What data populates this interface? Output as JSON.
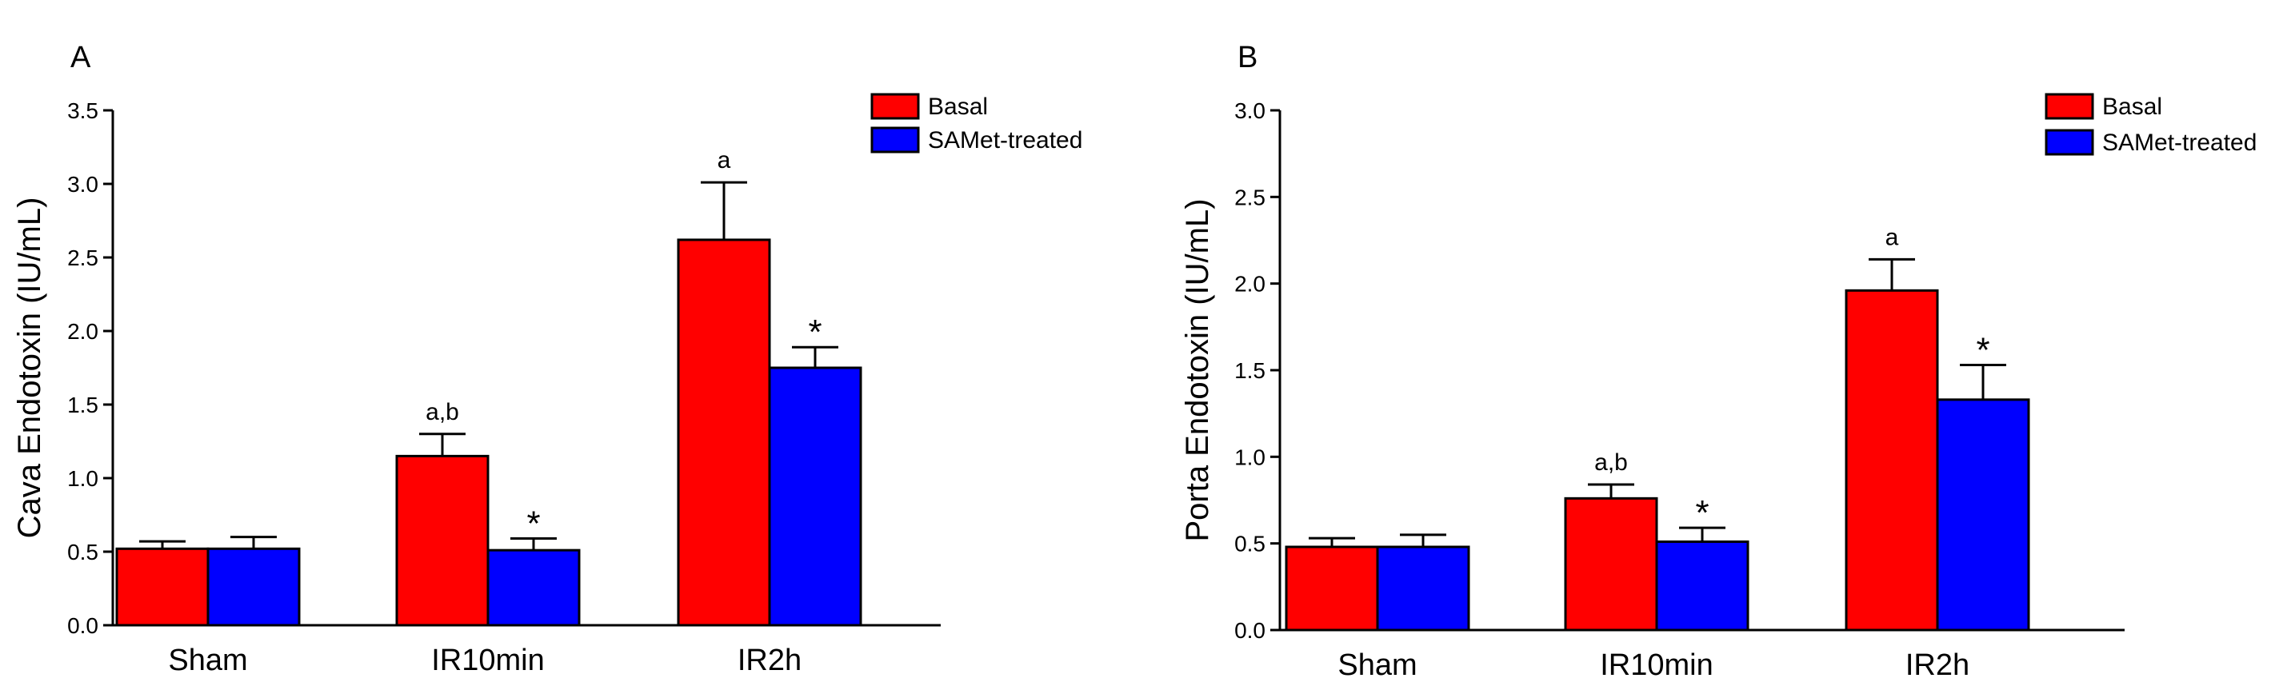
{
  "chart_data": [
    {
      "panel_label": "A",
      "type": "bar",
      "categories": [
        "Sham",
        "IR10min",
        "IR2h"
      ],
      "ylabel": "Cava Endotoxin (IU/mL)",
      "xlabel": "",
      "ylim": [
        0,
        3.5
      ],
      "yticks": [
        0.0,
        0.5,
        1.0,
        1.5,
        2.0,
        2.5,
        3.0,
        3.5
      ],
      "ytick_labels": [
        "0.0",
        "0.5",
        "1.0",
        "1.5",
        "2.0",
        "2.5",
        "3.0",
        "3.5"
      ],
      "legend_position": "top-right",
      "grid": false,
      "series": [
        {
          "name": "Basal",
          "color": "#ff0000",
          "values": [
            0.52,
            1.15,
            2.62
          ],
          "errors": [
            0.05,
            0.15,
            0.39
          ],
          "annotations": [
            "",
            "a,b",
            "a"
          ]
        },
        {
          "name": "SAMet-treated",
          "color": "#0000ff",
          "values": [
            0.52,
            0.51,
            1.75
          ],
          "errors": [
            0.08,
            0.08,
            0.14
          ],
          "annotations": [
            "",
            "*",
            "*"
          ]
        }
      ]
    },
    {
      "panel_label": "B",
      "type": "bar",
      "categories": [
        "Sham",
        "IR10min",
        "IR2h"
      ],
      "ylabel": "Porta Endotoxin (IU/mL)",
      "xlabel": "",
      "ylim": [
        0,
        3.0
      ],
      "yticks": [
        0.0,
        0.5,
        1.0,
        1.5,
        2.0,
        2.5,
        3.0
      ],
      "ytick_labels": [
        "0.0",
        "0.5",
        "1.0",
        "1.5",
        "2.0",
        "2.5",
        "3.0"
      ],
      "legend_position": "top-right",
      "grid": false,
      "series": [
        {
          "name": "Basal",
          "color": "#ff0000",
          "values": [
            0.48,
            0.76,
            1.96
          ],
          "errors": [
            0.05,
            0.08,
            0.18
          ],
          "annotations": [
            "",
            "a,b",
            "a"
          ]
        },
        {
          "name": "SAMet-treated",
          "color": "#0000ff",
          "values": [
            0.48,
            0.51,
            1.33
          ],
          "errors": [
            0.07,
            0.08,
            0.2
          ],
          "annotations": [
            "",
            "*",
            "*"
          ]
        }
      ]
    }
  ]
}
